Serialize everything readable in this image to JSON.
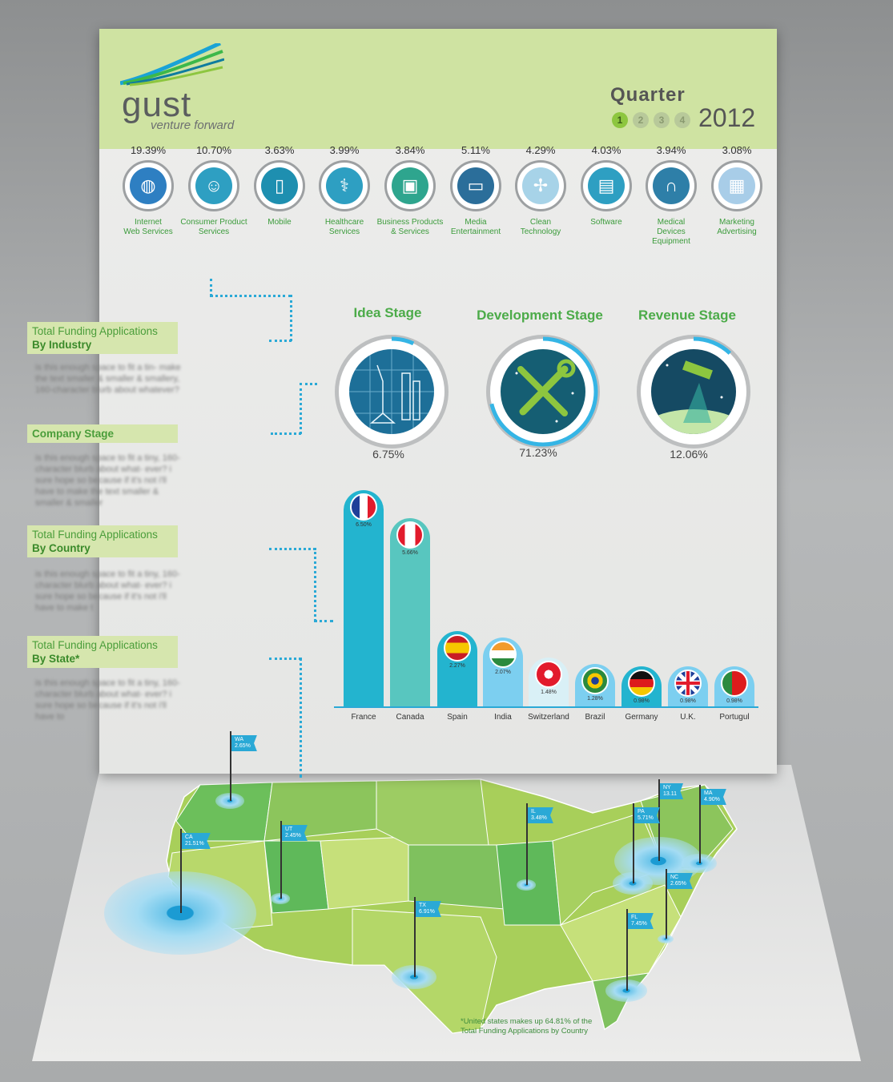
{
  "brand": {
    "name": "gust",
    "tagline": "venture forward"
  },
  "quarter": {
    "label": "Quarter",
    "year": "2012",
    "numbers": [
      "1",
      "2",
      "3",
      "4"
    ],
    "active": 0
  },
  "industries": [
    {
      "pct": "19.39%",
      "label1": "Internet",
      "label2": "Web Services",
      "icon": "globe-icon"
    },
    {
      "pct": "10.70%",
      "label1": "Consumer Product",
      "label2": "Services",
      "icon": "people-icon"
    },
    {
      "pct": "3.63%",
      "label1": "Mobile",
      "label2": "",
      "icon": "mobile-icon"
    },
    {
      "pct": "3.99%",
      "label1": "Healthcare",
      "label2": "Services",
      "icon": "caduceus-icon"
    },
    {
      "pct": "3.84%",
      "label1": "Business Products",
      "label2": "& Services",
      "icon": "briefcase-icon"
    },
    {
      "pct": "5.11%",
      "label1": "Media",
      "label2": "Entertainment",
      "icon": "monitor-icon"
    },
    {
      "pct": "4.29%",
      "label1": "Clean",
      "label2": "Technology",
      "icon": "wind-turbine-icon"
    },
    {
      "pct": "4.03%",
      "label1": "Software",
      "label2": "",
      "icon": "floppy-disk-icon"
    },
    {
      "pct": "3.94%",
      "label1": "Medical",
      "label2": "Devices Equipment",
      "icon": "stethoscope-icon"
    },
    {
      "pct": "3.08%",
      "label1": "Marketing",
      "label2": "Advertising",
      "icon": "browser-window-icon"
    }
  ],
  "sidebar": {
    "industry": {
      "title1": "Total Funding Applications",
      "title2": "By Industry",
      "blurb": "is this enough space to fit a tin- make the text smaller & smaller & smallery, 160-character blurb about whatever?"
    },
    "stage": {
      "title": "Company Stage",
      "blurb": "is this enough space to fit a tiny, 160-character blurb about what- ever? i sure hope so because if it's not i'll have to make the text smaller & smaller & smaller"
    },
    "country": {
      "title1": "Total Funding Applications",
      "title2": "By Country",
      "blurb": "is this enough space to fit a tiny, 160-character blurb about what- ever? i sure hope so because if it's not i'll have to make t"
    },
    "state": {
      "title1": "Total Funding Applications",
      "title2": "By State*",
      "blurb": "is this enough space to fit a tiny, 160-character blurb about what- ever? i sure hope so because if it's not i'll have to"
    }
  },
  "stages": [
    {
      "title": "Idea Stage",
      "pct": "6.75%",
      "fraction": 0.0675,
      "icon": "space-shuttle-blueprint-icon"
    },
    {
      "title": "Development Stage",
      "pct": "71.23%",
      "fraction": 0.7123,
      "icon": "wrench-screwdriver-icon"
    },
    {
      "title": "Revenue Stage",
      "pct": "12.06%",
      "fraction": 0.1206,
      "icon": "satellite-icon"
    }
  ],
  "chart_data": {
    "type": "bar",
    "categories": [
      "France",
      "Canada",
      "Spain",
      "India",
      "Switzerland",
      "Brazil",
      "Germany",
      "U.K.",
      "Portugul"
    ],
    "values": [
      6.5,
      5.66,
      2.27,
      2.07,
      1.48,
      1.28,
      0.98,
      0.98,
      0.98
    ],
    "value_labels": [
      "6.50%",
      "5.66%",
      "2.27%",
      "2.07%",
      "1.48%",
      "1.28%",
      "0.98%",
      "0.98%",
      "0.98%"
    ],
    "colors": [
      "#23b4cf",
      "#58c6bf",
      "#23b4cf",
      "#7ccff0",
      "#d9f0f6",
      "#7ccff0",
      "#23b4cf",
      "#7ccff0",
      "#7ccff0"
    ]
  },
  "states": [
    {
      "code": "WA",
      "value": "2.65%"
    },
    {
      "code": "CA",
      "value": "21.51%"
    },
    {
      "code": "UT",
      "value": "2.45%"
    },
    {
      "code": "TX",
      "value": "6.91%"
    },
    {
      "code": "IL",
      "value": "3.48%"
    },
    {
      "code": "NY",
      "value": "13.11"
    },
    {
      "code": "MA",
      "value": "4.90%"
    },
    {
      "code": "PA",
      "value": "5.71%"
    },
    {
      "code": "NC",
      "value": "2.65%"
    },
    {
      "code": "FL",
      "value": "7.45%"
    }
  ],
  "footnote": {
    "line1": "*United states makes up 64.81% of the",
    "line2": "Total Funding Applications by Country"
  }
}
